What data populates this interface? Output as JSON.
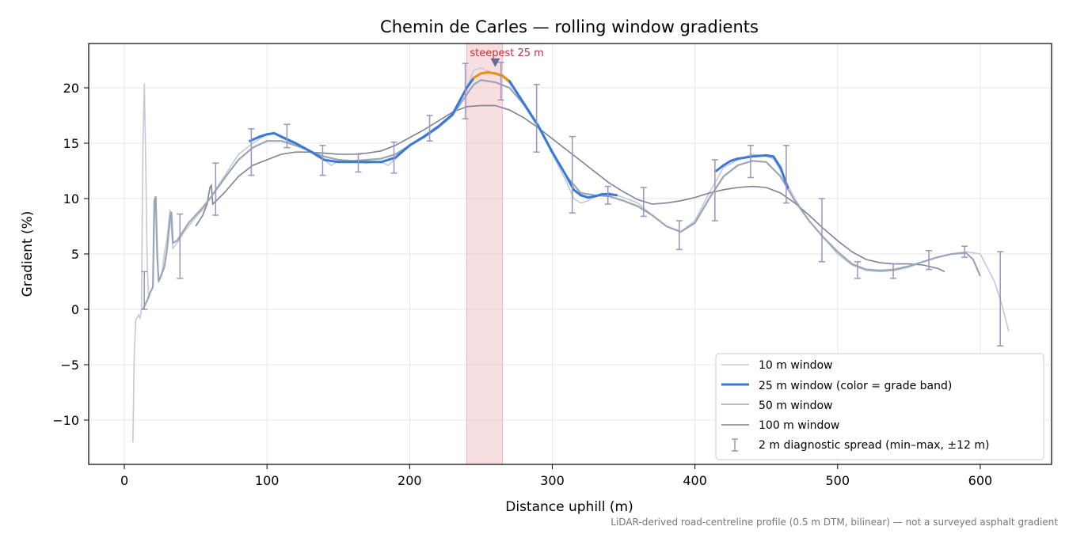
{
  "chart_data": {
    "type": "line",
    "title": "Chemin de Carles — rolling window gradients",
    "xlabel": "Distance uphill (m)",
    "ylabel": "Gradient (%)",
    "footnote": "LiDAR-derived road-centreline profile (0.5 m DTM, bilinear) — not a surveyed asphalt gradient",
    "xlim": [
      -25,
      650
    ],
    "ylim": [
      -14,
      24
    ],
    "x_ticks": [
      0,
      100,
      200,
      300,
      400,
      500,
      600
    ],
    "y_ticks": [
      -10,
      -5,
      0,
      5,
      10,
      15,
      20
    ],
    "grid": true,
    "legend_position": "lower-right",
    "colors": {
      "w10": "#c3cad6",
      "w25": "#3a78d6",
      "w25_steep": "#e8900a",
      "w50": "#9aa6b6",
      "w100": "#7b8394",
      "spread": "#9d93bf",
      "highlight": "#e8a0a8",
      "annotation": "#c0303c"
    },
    "highlight_band": {
      "x0": 240,
      "x1": 265,
      "label": "steepest 25 m",
      "marker_x": 260,
      "marker_y": 22.3
    },
    "series": [
      {
        "key": "w10",
        "name": "10 m window",
        "points": [
          [
            6,
            -12
          ],
          [
            7,
            -4
          ],
          [
            8,
            -1
          ],
          [
            10,
            -0.5
          ],
          [
            11,
            -0.8
          ],
          [
            12,
            0
          ],
          [
            13,
            15
          ],
          [
            14,
            20.4
          ],
          [
            15,
            13
          ],
          [
            16,
            4
          ],
          [
            17,
            1
          ],
          [
            18,
            1.5
          ],
          [
            20,
            2
          ],
          [
            21,
            8
          ],
          [
            22,
            10
          ],
          [
            23,
            6
          ],
          [
            24,
            2.5
          ],
          [
            26,
            3
          ],
          [
            28,
            5
          ],
          [
            30,
            6.5
          ],
          [
            32,
            9
          ],
          [
            34,
            5.5
          ],
          [
            37,
            6
          ],
          [
            42,
            7
          ],
          [
            48,
            8
          ],
          [
            55,
            9
          ],
          [
            60,
            10
          ],
          [
            65,
            11
          ],
          [
            70,
            12
          ],
          [
            80,
            14
          ],
          [
            90,
            15
          ],
          [
            100,
            15.8
          ],
          [
            105,
            15.9
          ],
          [
            110,
            15.5
          ],
          [
            120,
            14.8
          ],
          [
            130,
            14.3
          ],
          [
            140,
            13.5
          ],
          [
            145,
            13
          ],
          [
            150,
            13.4
          ],
          [
            160,
            13.3
          ],
          [
            170,
            13.2
          ],
          [
            180,
            13.3
          ],
          [
            185,
            13
          ],
          [
            190,
            13.6
          ],
          [
            200,
            14.8
          ],
          [
            210,
            15.5
          ],
          [
            220,
            16.5
          ],
          [
            230,
            17.5
          ],
          [
            240,
            20
          ],
          [
            245,
            21.6
          ],
          [
            250,
            21.8
          ],
          [
            255,
            21.5
          ],
          [
            260,
            21.2
          ],
          [
            265,
            21
          ],
          [
            270,
            20.4
          ],
          [
            275,
            19.5
          ],
          [
            280,
            18.5
          ],
          [
            290,
            16.5
          ],
          [
            300,
            14
          ],
          [
            310,
            11.5
          ],
          [
            315,
            10
          ],
          [
            320,
            9.6
          ],
          [
            325,
            9.8
          ],
          [
            330,
            10.2
          ],
          [
            340,
            10.5
          ],
          [
            350,
            10.1
          ],
          [
            360,
            9.6
          ],
          [
            370,
            8.5
          ],
          [
            380,
            7.5
          ],
          [
            390,
            7
          ],
          [
            400,
            8
          ],
          [
            410,
            10.5
          ],
          [
            420,
            12.8
          ],
          [
            430,
            13.5
          ],
          [
            440,
            14
          ],
          [
            450,
            13.8
          ],
          [
            455,
            13.6
          ],
          [
            460,
            12.5
          ],
          [
            470,
            10
          ],
          [
            480,
            8
          ],
          [
            490,
            6.5
          ],
          [
            500,
            5
          ],
          [
            510,
            4
          ],
          [
            520,
            3.5
          ],
          [
            530,
            3.4
          ],
          [
            540,
            3.5
          ],
          [
            550,
            3.8
          ],
          [
            560,
            4.3
          ],
          [
            570,
            4.7
          ],
          [
            580,
            5
          ],
          [
            590,
            5.2
          ],
          [
            600,
            5
          ],
          [
            610,
            2.5
          ],
          [
            615,
            0.5
          ],
          [
            620,
            -2
          ]
        ]
      },
      {
        "key": "w25",
        "name": "25 m window (color = grade band)",
        "points": [
          [
            88,
            15.2
          ],
          [
            95,
            15.6
          ],
          [
            100,
            15.8
          ],
          [
            105,
            15.9
          ],
          [
            110,
            15.6
          ],
          [
            120,
            15
          ],
          [
            130,
            14.3
          ],
          [
            140,
            13.5
          ],
          [
            150,
            13.3
          ],
          [
            160,
            13.3
          ],
          [
            170,
            13.3
          ],
          [
            180,
            13.3
          ],
          [
            190,
            13.7
          ],
          [
            200,
            14.8
          ],
          [
            210,
            15.6
          ],
          [
            220,
            16.5
          ],
          [
            230,
            17.6
          ],
          [
            240,
            20
          ],
          [
            245,
            20.9
          ],
          [
            250,
            21.3
          ],
          [
            255,
            21.4
          ],
          [
            260,
            21.3
          ],
          [
            265,
            21.1
          ],
          [
            270,
            20.6
          ],
          [
            275,
            19.6
          ],
          [
            280,
            18.6
          ],
          [
            290,
            16.6
          ],
          [
            300,
            14.2
          ],
          [
            310,
            12
          ],
          [
            315,
            10.8
          ],
          [
            320,
            10.3
          ],
          [
            325,
            10.1
          ],
          [
            330,
            10.2
          ],
          [
            335,
            10.4
          ],
          [
            340,
            10.4
          ],
          [
            345,
            10.3
          ]
        ]
      },
      {
        "key": "w25b",
        "name": "",
        "points": [
          [
            415,
            12.5
          ],
          [
            420,
            13
          ],
          [
            425,
            13.4
          ],
          [
            430,
            13.6
          ],
          [
            440,
            13.8
          ],
          [
            450,
            13.9
          ],
          [
            455,
            13.8
          ],
          [
            460,
            12.8
          ],
          [
            465,
            11
          ]
        ]
      },
      {
        "key": "w50",
        "name": "50 m window",
        "points": [
          [
            13,
            0
          ],
          [
            16,
            0.8
          ],
          [
            18,
            1.5
          ],
          [
            20,
            2
          ],
          [
            21,
            9.8
          ],
          [
            22,
            10.2
          ],
          [
            23,
            5
          ],
          [
            24,
            2.5
          ],
          [
            28,
            3.8
          ],
          [
            30,
            5.5
          ],
          [
            32,
            8.2
          ],
          [
            33,
            8.8
          ],
          [
            34,
            6
          ],
          [
            37,
            6.2
          ],
          [
            45,
            7.8
          ],
          [
            55,
            9.2
          ],
          [
            60,
            10
          ],
          [
            70,
            11.8
          ],
          [
            80,
            13.5
          ],
          [
            90,
            14.6
          ],
          [
            100,
            15.2
          ],
          [
            110,
            15.2
          ],
          [
            120,
            14.8
          ],
          [
            130,
            14.3
          ],
          [
            140,
            13.8
          ],
          [
            150,
            13.5
          ],
          [
            160,
            13.4
          ],
          [
            170,
            13.5
          ],
          [
            180,
            13.6
          ],
          [
            190,
            14
          ],
          [
            200,
            14.8
          ],
          [
            210,
            15.5
          ],
          [
            220,
            16.4
          ],
          [
            230,
            17.5
          ],
          [
            240,
            19.4
          ],
          [
            245,
            20.3
          ],
          [
            250,
            20.7
          ],
          [
            260,
            20.5
          ],
          [
            270,
            20
          ],
          [
            280,
            18.5
          ],
          [
            290,
            16.5
          ],
          [
            300,
            14.2
          ],
          [
            310,
            12
          ],
          [
            320,
            10.5
          ],
          [
            330,
            10.3
          ],
          [
            340,
            10.2
          ],
          [
            350,
            9.8
          ],
          [
            360,
            9.3
          ],
          [
            370,
            8.5
          ],
          [
            380,
            7.5
          ],
          [
            390,
            7
          ],
          [
            400,
            7.8
          ],
          [
            410,
            10
          ],
          [
            420,
            12
          ],
          [
            430,
            13
          ],
          [
            440,
            13.4
          ],
          [
            450,
            13.3
          ],
          [
            460,
            12
          ],
          [
            470,
            9.8
          ],
          [
            480,
            8
          ],
          [
            490,
            6.5
          ],
          [
            500,
            5.2
          ],
          [
            510,
            4.1
          ],
          [
            520,
            3.6
          ],
          [
            530,
            3.5
          ],
          [
            540,
            3.6
          ],
          [
            550,
            3.9
          ],
          [
            560,
            4.3
          ],
          [
            570,
            4.7
          ],
          [
            580,
            5
          ],
          [
            590,
            5.1
          ],
          [
            595,
            4.5
          ],
          [
            600,
            3
          ]
        ]
      },
      {
        "key": "w100",
        "name": "100 m window",
        "points": [
          [
            50,
            7.5
          ],
          [
            55,
            8.5
          ],
          [
            58,
            9.5
          ],
          [
            60,
            11
          ],
          [
            61,
            11.2
          ],
          [
            62,
            9.5
          ],
          [
            70,
            10.5
          ],
          [
            80,
            12
          ],
          [
            90,
            13
          ],
          [
            100,
            13.5
          ],
          [
            110,
            14
          ],
          [
            120,
            14.2
          ],
          [
            130,
            14.2
          ],
          [
            140,
            14.1
          ],
          [
            150,
            14
          ],
          [
            160,
            14
          ],
          [
            170,
            14.1
          ],
          [
            180,
            14.3
          ],
          [
            190,
            14.8
          ],
          [
            200,
            15.5
          ],
          [
            210,
            16.2
          ],
          [
            220,
            17
          ],
          [
            230,
            17.8
          ],
          [
            240,
            18.3
          ],
          [
            250,
            18.4
          ],
          [
            260,
            18.4
          ],
          [
            270,
            18
          ],
          [
            280,
            17.3
          ],
          [
            290,
            16.4
          ],
          [
            300,
            15.4
          ],
          [
            310,
            14.4
          ],
          [
            320,
            13.4
          ],
          [
            330,
            12.4
          ],
          [
            340,
            11.4
          ],
          [
            350,
            10.6
          ],
          [
            360,
            9.9
          ],
          [
            370,
            9.5
          ],
          [
            380,
            9.6
          ],
          [
            390,
            9.8
          ],
          [
            400,
            10.1
          ],
          [
            410,
            10.5
          ],
          [
            420,
            10.8
          ],
          [
            430,
            11
          ],
          [
            440,
            11.1
          ],
          [
            450,
            11
          ],
          [
            460,
            10.5
          ],
          [
            470,
            9.6
          ],
          [
            480,
            8.5
          ],
          [
            490,
            7.3
          ],
          [
            500,
            6.2
          ],
          [
            510,
            5.2
          ],
          [
            520,
            4.5
          ],
          [
            530,
            4.2
          ],
          [
            540,
            4.1
          ],
          [
            550,
            4.1
          ],
          [
            560,
            4
          ],
          [
            570,
            3.7
          ],
          [
            575,
            3.4
          ]
        ]
      }
    ],
    "spread_bars": {
      "name": "2 m diagnostic spread (min–max, ±12 m)",
      "bars": [
        [
          14,
          0,
          3.4
        ],
        [
          39,
          2.8,
          8.6
        ],
        [
          64,
          8.5,
          13.2
        ],
        [
          89,
          12.1,
          16.3
        ],
        [
          114,
          14.6,
          16.7
        ],
        [
          139,
          12.1,
          14.8
        ],
        [
          164,
          12.4,
          14
        ],
        [
          189,
          12.3,
          15.1
        ],
        [
          214,
          15.2,
          17.5
        ],
        [
          239,
          17.2,
          22.2
        ],
        [
          264,
          18.9,
          22.3
        ],
        [
          289,
          14.2,
          20.3
        ],
        [
          314,
          8.7,
          15.6
        ],
        [
          339,
          9.5,
          11.1
        ],
        [
          364,
          8.4,
          11
        ],
        [
          389,
          5.4,
          8
        ],
        [
          414,
          8,
          13.5
        ],
        [
          439,
          11.9,
          14.8
        ],
        [
          464,
          9.6,
          14.8
        ],
        [
          489,
          4.3,
          10
        ],
        [
          514,
          2.8,
          4.3
        ],
        [
          539,
          2.8,
          4.1
        ],
        [
          564,
          3.6,
          5.3
        ],
        [
          589,
          4.7,
          5.7
        ],
        [
          614,
          -3.3,
          5.2
        ]
      ]
    }
  }
}
